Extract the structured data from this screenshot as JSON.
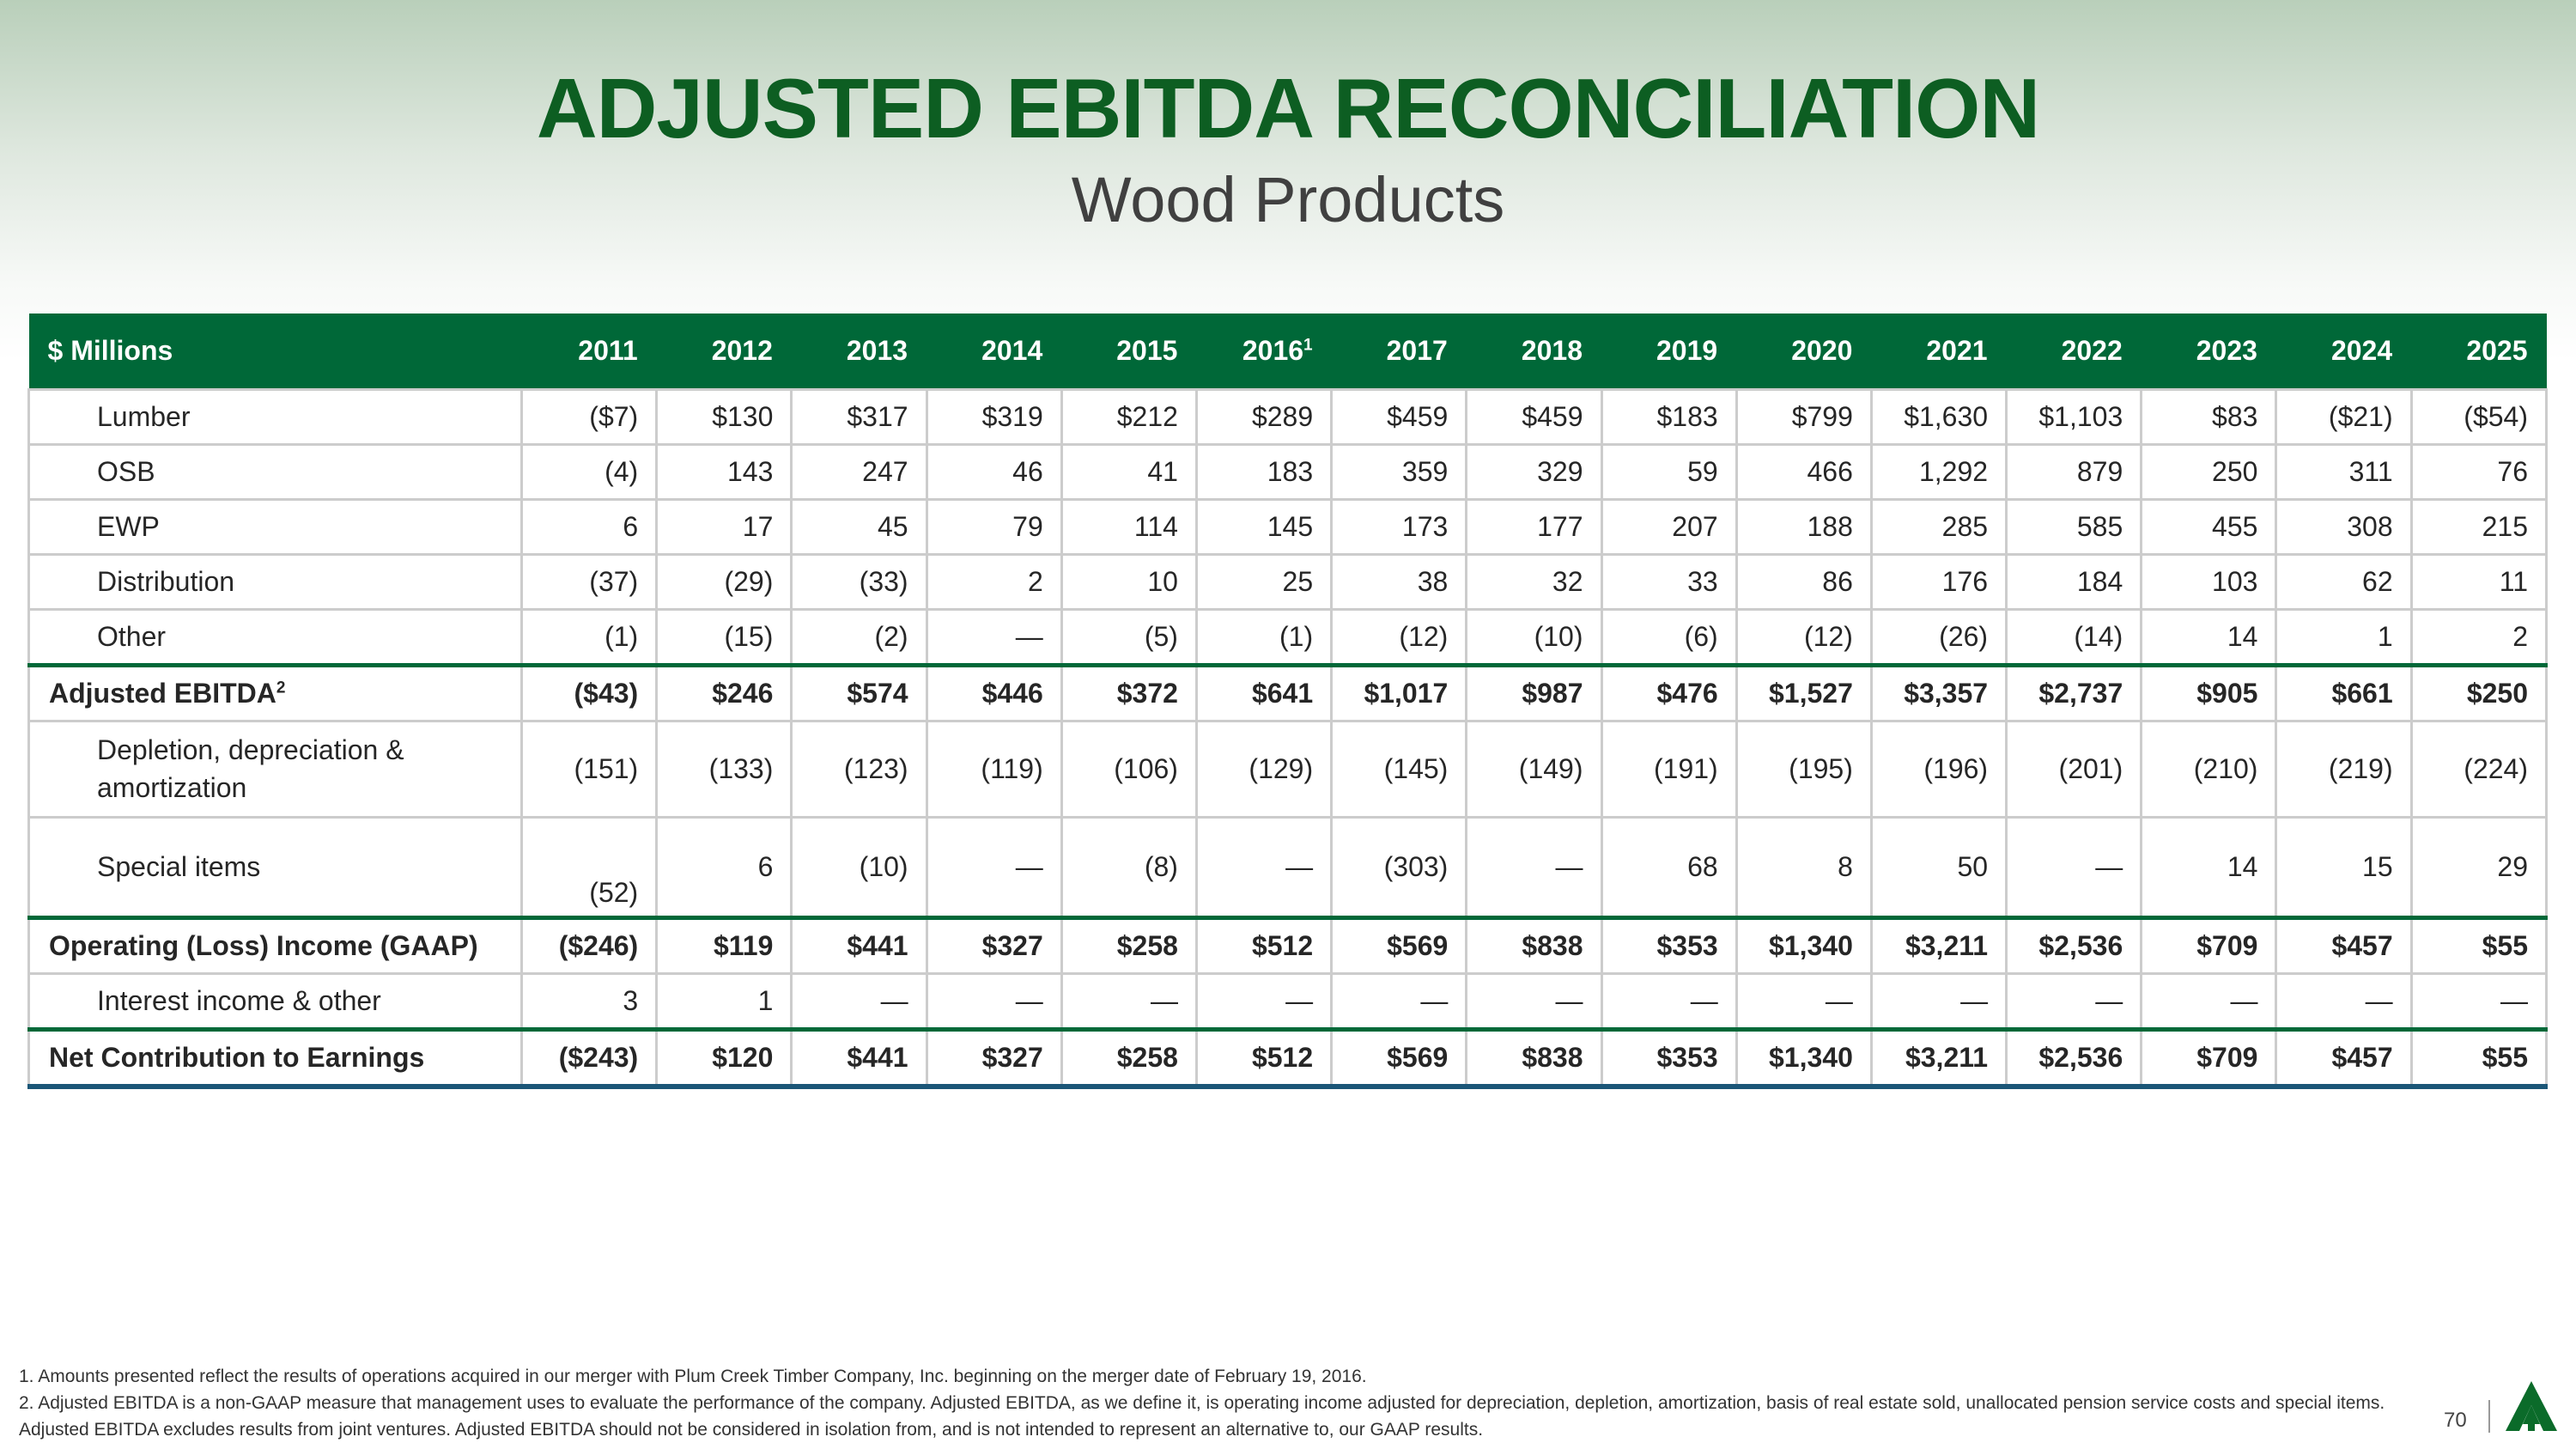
{
  "title": "ADJUSTED EBITDA RECONCILIATION",
  "subtitle": "Wood Products",
  "table": {
    "header_label": "$ Millions",
    "years": [
      "2011",
      "2012",
      "2013",
      "2014",
      "2015",
      "2016",
      "2017",
      "2018",
      "2019",
      "2020",
      "2021",
      "2022",
      "2023",
      "2024",
      "2025"
    ],
    "year_footnote": {
      "index": 5,
      "mark": "1"
    },
    "rows": [
      {
        "label": "Lumber",
        "values": [
          "($7)",
          "$130",
          "$317",
          "$319",
          "$212",
          "$289",
          "$459",
          "$459",
          "$183",
          "$799",
          "$1,630",
          "$1,103",
          "$83",
          "($21)",
          "($54)"
        ]
      },
      {
        "label": "OSB",
        "values": [
          "(4)",
          "143",
          "247",
          "46",
          "41",
          "183",
          "359",
          "329",
          "59",
          "466",
          "1,292",
          "879",
          "250",
          "311",
          "76"
        ]
      },
      {
        "label": "EWP",
        "values": [
          "6",
          "17",
          "45",
          "79",
          "114",
          "145",
          "173",
          "177",
          "207",
          "188",
          "285",
          "585",
          "455",
          "308",
          "215"
        ]
      },
      {
        "label": "Distribution",
        "values": [
          "(37)",
          "(29)",
          "(33)",
          "2",
          "10",
          "25",
          "38",
          "32",
          "33",
          "86",
          "176",
          "184",
          "103",
          "62",
          "11"
        ]
      },
      {
        "label": "Other",
        "values": [
          "(1)",
          "(15)",
          "(2)",
          "—",
          "(5)",
          "(1)",
          "(12)",
          "(10)",
          "(6)",
          "(12)",
          "(26)",
          "(14)",
          "14",
          "1",
          "2"
        ]
      },
      {
        "label": "Adjusted EBITDA",
        "footnote": "2",
        "values": [
          "($43)",
          "$246",
          "$574",
          "$446",
          "$372",
          "$641",
          "$1,017",
          "$987",
          "$476",
          "$1,527",
          "$3,357",
          "$2,737",
          "$905",
          "$661",
          "$250"
        ]
      },
      {
        "label": "Depletion, depreciation & amortization",
        "values": [
          "(151)",
          "(133)",
          "(123)",
          "(119)",
          "(106)",
          "(129)",
          "(145)",
          "(149)",
          "(191)",
          "(195)",
          "(196)",
          "(201)",
          "(210)",
          "(219)",
          "(224)"
        ]
      },
      {
        "label": "Special items",
        "values": [
          "(52)",
          "6",
          "(10)",
          "—",
          "(8)",
          "—",
          "(303)",
          "—",
          "68",
          "8",
          "50",
          "—",
          "14",
          "15",
          "29"
        ]
      },
      {
        "label": "Operating (Loss) Income (GAAP)",
        "values": [
          "($246)",
          "$119",
          "$441",
          "$327",
          "$258",
          "$512",
          "$569",
          "$838",
          "$353",
          "$1,340",
          "$3,211",
          "$2,536",
          "$709",
          "$457",
          "$55"
        ]
      },
      {
        "label": "Interest income & other",
        "values": [
          "3",
          "1",
          "—",
          "—",
          "—",
          "—",
          "—",
          "—",
          "—",
          "—",
          "—",
          "—",
          "—",
          "—",
          "—"
        ]
      },
      {
        "label": "Net Contribution to Earnings",
        "values": [
          "($243)",
          "$120",
          "$441",
          "$327",
          "$258",
          "$512",
          "$569",
          "$838",
          "$353",
          "$1,340",
          "$3,211",
          "$2,536",
          "$709",
          "$457",
          "$55"
        ]
      }
    ]
  },
  "footnotes": [
    "1. Amounts presented reflect the results of operations acquired in our merger with Plum Creek Timber Company, Inc. beginning on the merger date of February 19, 2016.",
    "2. Adjusted EBITDA is a non-GAAP measure that management uses to evaluate the performance of the company. Adjusted EBITDA, as we define it, is operating income adjusted for depreciation, depletion, amortization, basis of real estate sold, unallocated pension service costs and special items. Adjusted EBITDA excludes results from joint ventures. Adjusted EBITDA should not be considered in isolation from, and is not intended to represent an alternative to, our GAAP results."
  ],
  "page_number": "70",
  "colors": {
    "brand_green": "#006838",
    "title_green": "#0d5e22",
    "rule_blue": "#1b5677"
  },
  "logo_icon": "tree-logo-icon"
}
